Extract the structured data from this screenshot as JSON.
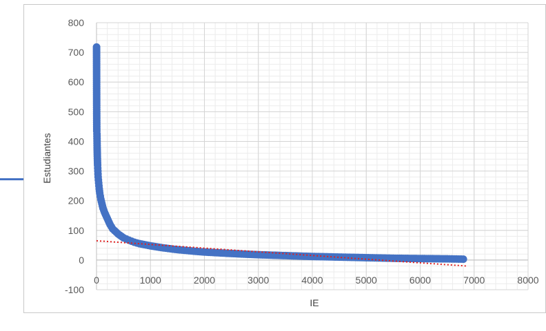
{
  "chart_data": {
    "type": "scatter",
    "xlabel": "IE",
    "ylabel": "Estudiantes",
    "xlim": [
      0,
      8000
    ],
    "ylim": [
      -100,
      800
    ],
    "x_ticks": [
      "0",
      "1000",
      "2000",
      "3000",
      "4000",
      "5000",
      "6000",
      "7000",
      "8000"
    ],
    "y_ticks": [
      "-100",
      "0",
      "100",
      "200",
      "300",
      "400",
      "500",
      "600",
      "700",
      "800"
    ],
    "grid": true,
    "minor_grid": true,
    "legend": "none",
    "marker_color": "#4472c4",
    "trendline_color": "#e02020",
    "series": [
      {
        "x": [
          1,
          3,
          5,
          8,
          12,
          15,
          20,
          25,
          30,
          40,
          50,
          60,
          80,
          100,
          120,
          150,
          200,
          250,
          300,
          400,
          500,
          600,
          700,
          800,
          1000,
          1200,
          1500,
          1800,
          2000,
          2500,
          3000,
          3500,
          4000,
          4500,
          5000,
          5500,
          6000,
          6500,
          6800
        ],
        "y": [
          718,
          522,
          435,
          425,
          378,
          350,
          320,
          300,
          280,
          260,
          240,
          225,
          205,
          190,
          175,
          160,
          140,
          120,
          105,
          88,
          75,
          67,
          60,
          55,
          48,
          42,
          35,
          30,
          27,
          22,
          18,
          15,
          12,
          10,
          8,
          6,
          5,
          4,
          3
        ]
      }
    ],
    "trendline": {
      "x": [
        0,
        6850
      ],
      "y": [
        65,
        -20
      ]
    }
  }
}
